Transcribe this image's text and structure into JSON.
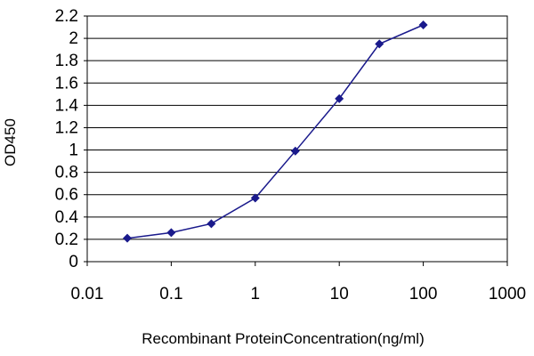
{
  "chart_data": {
    "type": "line",
    "title": "",
    "xlabel": "Recombinant ProteinConcentration(ng/ml)",
    "ylabel": "OD450",
    "x_scale": "log",
    "xlim": [
      0.01,
      1000
    ],
    "ylim": [
      0,
      2.2
    ],
    "x_ticks": [
      "0.01",
      "0.1",
      "1",
      "10",
      "100",
      "1000"
    ],
    "y_ticks": [
      "0",
      "0.2",
      "0.4",
      "0.6",
      "0.8",
      "1",
      "1.2",
      "1.4",
      "1.6",
      "1.8",
      "2",
      "2.2"
    ],
    "grid": "horizontal",
    "legend": "none",
    "series": [
      {
        "color": "#1a1a8c",
        "x": [
          0.03,
          0.1,
          0.3,
          1,
          3,
          10,
          30,
          100
        ],
        "y": [
          0.21,
          0.26,
          0.34,
          0.57,
          0.99,
          1.46,
          1.95,
          2.12
        ]
      }
    ]
  }
}
